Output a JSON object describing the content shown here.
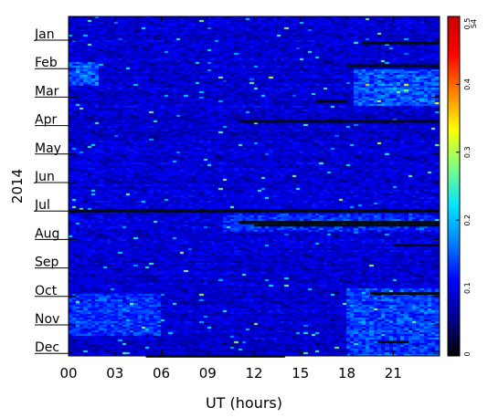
{
  "chart_data": {
    "type": "heatmap",
    "title": "",
    "xlabel": "UT (hours)",
    "ylabel": "2014",
    "x_ticks": [
      "00",
      "03",
      "06",
      "09",
      "12",
      "15",
      "18",
      "21"
    ],
    "x_tick_values": [
      0,
      3,
      6,
      9,
      12,
      15,
      18,
      21
    ],
    "xlim": [
      0,
      24
    ],
    "y_ticks": [
      "Jan",
      "Feb",
      "Mar",
      "Apr",
      "May",
      "Jun",
      "Jul",
      "Aug",
      "Sep",
      "Oct",
      "Nov",
      "Dec"
    ],
    "y_tick_months": [
      1,
      2,
      3,
      4,
      5,
      6,
      7,
      8,
      9,
      10,
      11,
      12
    ],
    "colorbar": {
      "label": "S4",
      "range": [
        0,
        0.5
      ],
      "ticks": [
        "0",
        "0.1",
        "0.2",
        "0.3",
        "0.4",
        "0.5"
      ],
      "tick_values": [
        0,
        0.1,
        0.2,
        0.3,
        0.4,
        0.5
      ],
      "colors": [
        "#000000",
        "#00008f",
        "#0000ff",
        "#0080ff",
        "#00e5ff",
        "#7fff7f",
        "#ffff00",
        "#ff8000",
        "#ff0000",
        "#c80000"
      ]
    },
    "background_s4": 0.09,
    "enhanced_regions": [
      {
        "name": "Feb-Mar evening",
        "months": [
          2,
          3.3
        ],
        "ut": [
          18.5,
          24
        ],
        "s4": 0.16
      },
      {
        "name": "Oct-Dec evening",
        "months": [
          9.7,
          12.3
        ],
        "ut": [
          18,
          24
        ],
        "s4": 0.15
      },
      {
        "name": "Feb morning",
        "months": [
          1.8,
          2.6
        ],
        "ut": [
          0,
          2
        ],
        "s4": 0.16
      },
      {
        "name": "Jul-Aug band",
        "months": [
          7.1,
          7.7
        ],
        "ut": [
          10,
          24
        ],
        "s4": 0.13
      },
      {
        "name": "Oct-Nov morning",
        "months": [
          9.9,
          11.4
        ],
        "ut": [
          0,
          6
        ],
        "s4": 0.14
      }
    ],
    "data_gaps": [
      {
        "month": 1.1,
        "ut": [
          19,
          24
        ]
      },
      {
        "month": 1.9,
        "ut": [
          18,
          24
        ]
      },
      {
        "month": 3.15,
        "ut": [
          16,
          18
        ]
      },
      {
        "month": 3.85,
        "ut": [
          11,
          24
        ]
      },
      {
        "month": 7.0,
        "ut": [
          0,
          24
        ]
      },
      {
        "month": 7.4,
        "ut": [
          11,
          24
        ]
      },
      {
        "month": 7.5,
        "ut": [
          12,
          24
        ]
      },
      {
        "month": 8.2,
        "ut": [
          21,
          24
        ]
      },
      {
        "month": 9.9,
        "ut": [
          19.5,
          24
        ]
      },
      {
        "month": 11.6,
        "ut": [
          20,
          22
        ]
      },
      {
        "month": 12.1,
        "ut": [
          5,
          14
        ]
      }
    ]
  }
}
